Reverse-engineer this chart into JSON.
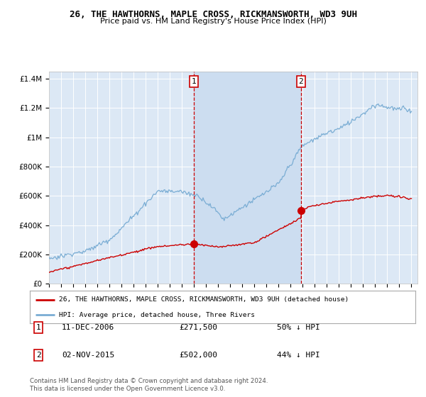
{
  "title": "26, THE HAWTHORNS, MAPLE CROSS, RICKMANSWORTH, WD3 9UH",
  "subtitle": "Price paid vs. HM Land Registry's House Price Index (HPI)",
  "ylim": [
    0,
    1450000
  ],
  "yticks": [
    0,
    200000,
    400000,
    600000,
    800000,
    1000000,
    1200000,
    1400000
  ],
  "ytick_labels": [
    "£0",
    "£200K",
    "£400K",
    "£600K",
    "£800K",
    "£1M",
    "£1.2M",
    "£1.4M"
  ],
  "background_color": "#ffffff",
  "plot_bg_color": "#dce8f5",
  "grid_color": "#ffffff",
  "legend_label_red": "26, THE HAWTHORNS, MAPLE CROSS, RICKMANSWORTH, WD3 9UH (detached house)",
  "legend_label_blue": "HPI: Average price, detached house, Three Rivers",
  "transaction1_date": "11-DEC-2006",
  "transaction1_price": "£271,500",
  "transaction1_pct": "50% ↓ HPI",
  "transaction2_date": "02-NOV-2015",
  "transaction2_price": "£502,000",
  "transaction2_pct": "44% ↓ HPI",
  "footer1": "Contains HM Land Registry data © Crown copyright and database right 2024.",
  "footer2": "This data is licensed under the Open Government Licence v3.0.",
  "red_color": "#cc0000",
  "blue_color": "#7aadd4",
  "shade_color": "#ccddf0",
  "vline_color": "#cc0000",
  "t1_x": 2007.0,
  "t2_x": 2015.85,
  "t1_y": 271500,
  "t2_y": 502000,
  "xmin": 1995,
  "xmax": 2025
}
